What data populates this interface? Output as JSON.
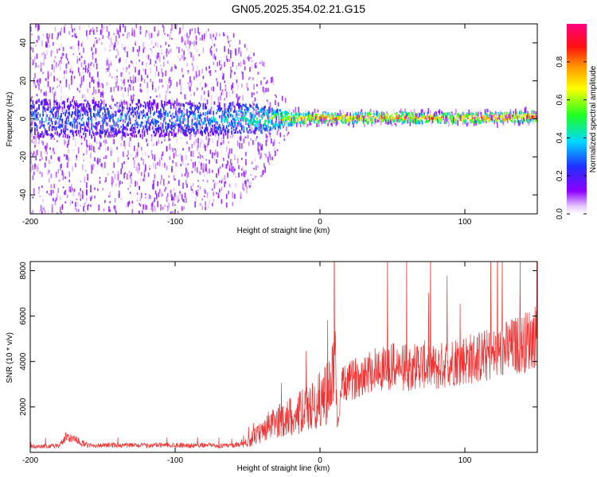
{
  "title": "GN05.2025.354.02.21.G15",
  "chart_data": [
    {
      "type": "heatmap",
      "xlabel": "Height of straight line (km)",
      "ylabel": "Frequency (Hz)",
      "xlim": [
        -200,
        150
      ],
      "ylim": [
        -50,
        50
      ],
      "xticks": [
        -200,
        -100,
        0,
        100
      ],
      "yticks": [
        -40,
        -20,
        0,
        20,
        40
      ],
      "colorbar": {
        "label": "Normalized spectral amplitude",
        "range": [
          0,
          1
        ],
        "ticks": [
          0.0,
          0.2,
          0.4,
          0.6,
          0.8
        ],
        "colormap": "rainbow (violet -> blue -> cyan -> green -> yellow -> orange -> red -> magenta)"
      },
      "description_points": [
        {
          "x": -200,
          "band_center_hz": 0,
          "band_halfwidth_hz": 10,
          "scatter_extent_hz": 50,
          "peak_amplitude": 0.35
        },
        {
          "x": -100,
          "band_center_hz": 0,
          "band_halfwidth_hz": 9,
          "scatter_extent_hz": 50,
          "peak_amplitude": 0.35
        },
        {
          "x": -60,
          "band_center_hz": 0,
          "band_halfwidth_hz": 8,
          "scatter_extent_hz": 45,
          "peak_amplitude": 0.45
        },
        {
          "x": -40,
          "band_center_hz": 0,
          "band_halfwidth_hz": 7,
          "scatter_extent_hz": 30,
          "peak_amplitude": 0.55
        },
        {
          "x": -20,
          "band_center_hz": 0,
          "band_halfwidth_hz": 3,
          "scatter_extent_hz": 5,
          "peak_amplitude": 0.75
        },
        {
          "x": 0,
          "band_center_hz": 0.5,
          "band_halfwidth_hz": 2.5,
          "scatter_extent_hz": 4,
          "peak_amplitude": 0.85
        },
        {
          "x": 50,
          "band_center_hz": 0.5,
          "band_halfwidth_hz": 2.5,
          "scatter_extent_hz": 4,
          "peak_amplitude": 0.85
        },
        {
          "x": 100,
          "band_center_hz": 0.5,
          "band_halfwidth_hz": 2.5,
          "scatter_extent_hz": 4,
          "peak_amplitude": 0.85
        },
        {
          "x": 150,
          "band_center_hz": 1,
          "band_halfwidth_hz": 2.5,
          "scatter_extent_hz": 4,
          "peak_amplitude": 0.9
        }
      ]
    },
    {
      "type": "line",
      "xlabel": "Height of straight line (km)",
      "ylabel": "SNR (10 * v/v)",
      "xlim": [
        -200,
        150
      ],
      "ylim": [
        0,
        8400
      ],
      "xticks": [
        -200,
        -100,
        0,
        100
      ],
      "yticks": [
        2000,
        4000,
        6000,
        8000
      ],
      "color": "#f03232",
      "series": [
        {
          "x": [
            -200,
            -180,
            -175,
            -160,
            -140,
            -120,
            -100,
            -90,
            -80,
            -70,
            -60,
            -50,
            -45,
            -40,
            -35,
            -30,
            -25,
            -20,
            -15,
            -10,
            -5,
            0,
            5,
            8,
            10,
            12,
            15,
            20,
            25,
            30,
            40,
            50,
            60,
            70,
            80,
            90,
            100,
            110,
            120,
            130,
            140,
            150
          ],
          "y": [
            250,
            280,
            700,
            300,
            320,
            300,
            330,
            300,
            320,
            280,
            300,
            450,
            700,
            900,
            1200,
            1300,
            1500,
            1600,
            1700,
            1900,
            2000,
            2300,
            2700,
            2600,
            5500,
            1100,
            2900,
            3100,
            3300,
            3500,
            3700,
            3800,
            3700,
            3900,
            3700,
            4000,
            4100,
            4200,
            4300,
            4600,
            4800,
            5200
          ]
        }
      ]
    }
  ]
}
